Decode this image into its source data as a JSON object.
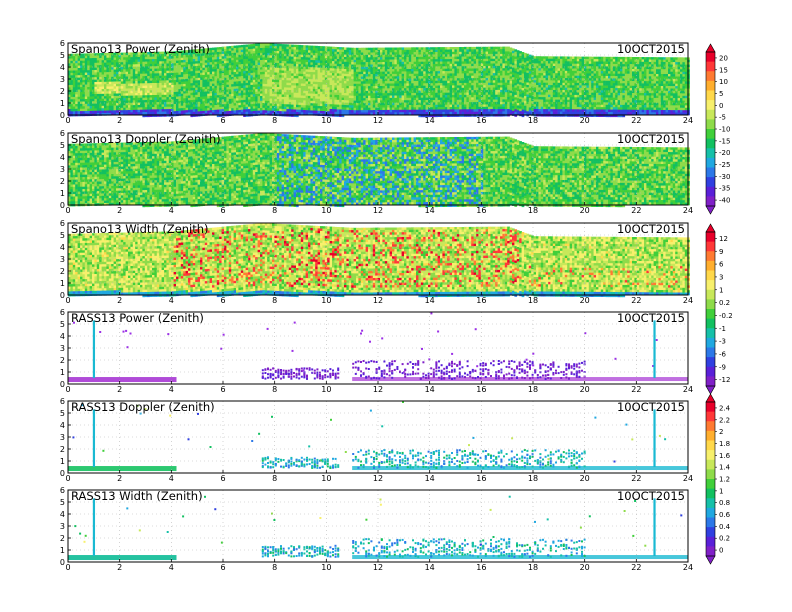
{
  "chart_data": [
    {
      "type": "heatmap",
      "title": "Spano13 Power (Zenith)",
      "date": "10OCT2015",
      "xlim": [
        0,
        24
      ],
      "ylim": [
        0,
        6
      ],
      "x_ticks": [
        0,
        2,
        4,
        6,
        8,
        10,
        12,
        14,
        16,
        18,
        20,
        22,
        24
      ],
      "y_ticks": [
        0,
        1,
        2,
        3,
        4,
        5,
        6
      ],
      "colorbar_group": "power",
      "top_profile": [
        [
          0,
          5.1
        ],
        [
          4,
          5.3
        ],
        [
          7.5,
          6
        ],
        [
          11,
          5.6
        ],
        [
          17,
          5.7
        ],
        [
          18,
          4.9
        ],
        [
          24,
          4.8
        ]
      ],
      "bottom_band_height": 0.5
    },
    {
      "type": "heatmap",
      "title": "Spano13 Doppler (Zenith)",
      "date": "10OCT2015",
      "xlim": [
        0,
        24
      ],
      "ylim": [
        0,
        6
      ],
      "x_ticks": [
        0,
        2,
        4,
        6,
        8,
        10,
        12,
        14,
        16,
        18,
        20,
        22,
        24
      ],
      "y_ticks": [
        0,
        1,
        2,
        3,
        4,
        5,
        6
      ],
      "colorbar_group": "power",
      "top_profile": [
        [
          0,
          5.1
        ],
        [
          4,
          5.3
        ],
        [
          7.5,
          6
        ],
        [
          11,
          5.6
        ],
        [
          17,
          5.7
        ],
        [
          18,
          4.9
        ],
        [
          24,
          4.8
        ]
      ],
      "bottom_band_height": 0.2
    },
    {
      "type": "heatmap",
      "title": "Spano13 Width (Zenith)",
      "date": "10OCT2015",
      "xlim": [
        0,
        24
      ],
      "ylim": [
        0,
        6
      ],
      "x_ticks": [
        0,
        2,
        4,
        6,
        8,
        10,
        12,
        14,
        16,
        18,
        20,
        22,
        24
      ],
      "y_ticks": [
        0,
        1,
        2,
        3,
        4,
        5,
        6
      ],
      "colorbar_group": "width",
      "top_profile": [
        [
          0,
          5.1
        ],
        [
          4,
          5.3
        ],
        [
          7.5,
          6
        ],
        [
          11,
          5.6
        ],
        [
          17,
          5.7
        ],
        [
          18,
          4.9
        ],
        [
          24,
          4.8
        ]
      ],
      "bottom_band_height": 0.4
    },
    {
      "type": "scatter",
      "title": "RASS13 Power (Zenith)",
      "date": "10OCT2015",
      "xlim": [
        0,
        24
      ],
      "ylim": [
        0,
        6
      ],
      "x_ticks": [
        0,
        2,
        4,
        6,
        8,
        10,
        12,
        14,
        16,
        18,
        20,
        22,
        24
      ],
      "y_ticks": [
        0,
        1,
        2,
        3,
        4,
        5,
        6
      ],
      "colorbar_group": "width",
      "spikes_x": [
        1,
        22.7
      ],
      "activity_windows": [
        [
          7.5,
          10.5,
          1.4
        ],
        [
          11,
          20,
          2.0
        ]
      ],
      "baseline_height": 0.5
    },
    {
      "type": "scatter",
      "title": "RASS13 Doppler (Zenith)",
      "date": "10OCT2015",
      "xlim": [
        0,
        24
      ],
      "ylim": [
        0,
        6
      ],
      "x_ticks": [
        0,
        2,
        4,
        6,
        8,
        10,
        12,
        14,
        16,
        18,
        20,
        22,
        24
      ],
      "y_ticks": [
        0,
        1,
        2,
        3,
        4,
        5,
        6
      ],
      "colorbar_group": "rass",
      "spikes_x": [
        1,
        22.7
      ],
      "activity_windows": [
        [
          7.5,
          10.5,
          1.4
        ],
        [
          11,
          20,
          2.0
        ]
      ],
      "baseline_height": 0.5
    },
    {
      "type": "scatter",
      "title": "RASS13 Width (Zenith)",
      "date": "10OCT2015",
      "xlim": [
        0,
        24
      ],
      "ylim": [
        0,
        6
      ],
      "x_ticks": [
        0,
        2,
        4,
        6,
        8,
        10,
        12,
        14,
        16,
        18,
        20,
        22,
        24
      ],
      "y_ticks": [
        0,
        1,
        2,
        3,
        4,
        5,
        6
      ],
      "colorbar_group": "rass",
      "spikes_x": [
        1,
        22.7
      ],
      "activity_windows": [
        [
          7.5,
          10.5,
          1.4
        ],
        [
          11,
          20,
          2.0
        ]
      ],
      "baseline_height": 0.5
    }
  ],
  "colorbars": {
    "power": {
      "labels": [
        "20",
        "15",
        "10",
        "5",
        "0",
        "-5",
        "-10",
        "-15",
        "-20",
        "-25",
        "-30",
        "-35",
        "-40"
      ],
      "colors": [
        "#e8002a",
        "#ff3838",
        "#ff7a32",
        "#ffae2e",
        "#ffd84a",
        "#f7f06c",
        "#c8e85a",
        "#8edb4a",
        "#40cf3a",
        "#12c060",
        "#16c0a8",
        "#20a8e0",
        "#2c78e8",
        "#3040e0",
        "#5a20d8",
        "#8020c8"
      ]
    },
    "width": {
      "labels": [
        "12",
        "9",
        "6",
        "3",
        "1",
        "0.2",
        "-0.2",
        "-1",
        "-3",
        "-6",
        "-9",
        "-12"
      ],
      "colors": [
        "#e8002a",
        "#ff3838",
        "#ff7a32",
        "#ffae2e",
        "#ffd84a",
        "#f7f06c",
        "#c8e85a",
        "#8edb4a",
        "#40cf3a",
        "#12c060",
        "#16c0a8",
        "#20a8e0",
        "#2c78e8",
        "#3040e0",
        "#5a20d8",
        "#8020c8"
      ]
    },
    "rass": {
      "labels": [
        "2.4",
        "2.2",
        "2",
        "1.8",
        "1.6",
        "1.4",
        "1.2",
        "1",
        "0.8",
        "0.6",
        "0.4",
        "0.2",
        "0"
      ],
      "colors": [
        "#e8002a",
        "#ff3838",
        "#ff7a32",
        "#ffae2e",
        "#ffd84a",
        "#f7f06c",
        "#c8e85a",
        "#8edb4a",
        "#40cf3a",
        "#12c060",
        "#16c0a8",
        "#20a8e0",
        "#2c78e8",
        "#3040e0",
        "#5a20d8",
        "#8020c8"
      ]
    }
  },
  "colors": {
    "axis": "#000000",
    "grid": "#b8b8b8",
    "rass_power_points": "#9b30e6",
    "rass_power_baseline": "#b04bd8",
    "rass_doppler_points": "#2cc870",
    "rass_width_points": "#25c2a0",
    "spike_color": "#19b9d2"
  }
}
